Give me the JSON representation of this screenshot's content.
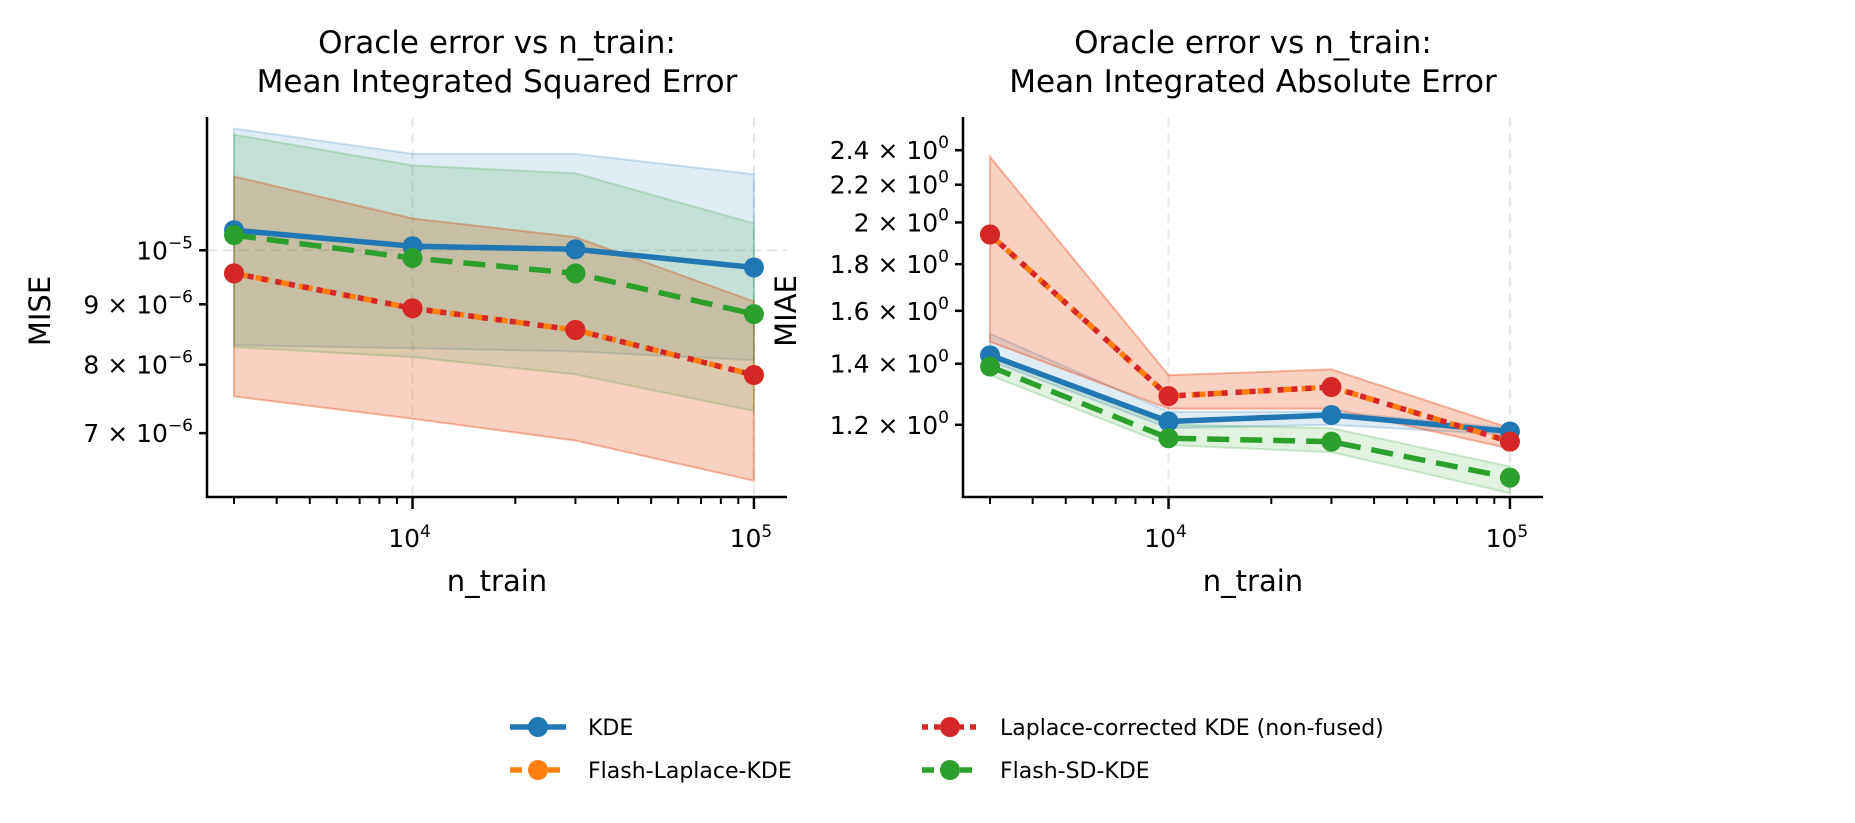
{
  "chart_data": [
    {
      "type": "line",
      "title_lines": [
        "Oracle error vs n_train:",
        "Mean Integrated Squared Error"
      ],
      "xlabel": "n_train",
      "ylabel": "MISE",
      "xscale": "log",
      "yscale": "log",
      "xlim": [
        2500,
        125000
      ],
      "ylim": [
        6.18e-06,
        1.297e-05
      ],
      "x": [
        3000,
        10000,
        30000,
        100000
      ],
      "x_ticks": [
        {
          "value": 10000,
          "base": "10",
          "exp": "4"
        },
        {
          "value": 100000,
          "base": "10",
          "exp": "5"
        }
      ],
      "y_ticks": [
        {
          "value": 1e-05,
          "mant": "",
          "base": "10",
          "exp": "−5"
        },
        {
          "value": 9e-06,
          "mant": "9 × ",
          "base": "10",
          "exp": "−6"
        },
        {
          "value": 8e-06,
          "mant": "8 × ",
          "base": "10",
          "exp": "−6"
        },
        {
          "value": 7e-06,
          "mant": "7 × ",
          "base": "10",
          "exp": "−6"
        }
      ],
      "grid": "dashed, light grey (major ticks only)",
      "series": [
        {
          "name": "KDE",
          "values": [
            1.04e-05,
            1.008e-05,
            1.002e-05,
            9.67e-06
          ],
          "band_upper": [
            1.268e-05,
            1.207e-05,
            1.207e-05,
            1.16e-05
          ],
          "band_lower": [
            8.31e-06,
            8.26e-06,
            8.21e-06,
            8.07e-06
          ]
        },
        {
          "name": "Flash-Laplace-KDE",
          "values": [
            9.56e-06,
            8.93e-06,
            8.56e-06,
            7.84e-06
          ],
          "band_upper": [
            1.155e-05,
            1.064e-05,
            1.026e-05,
            9.05e-06
          ],
          "band_lower": [
            7.52e-06,
            7.2e-06,
            6.9e-06,
            6.38e-06
          ]
        },
        {
          "name": "Laplace-corrected KDE (non-fused)",
          "values": [
            9.56e-06,
            8.93e-06,
            8.56e-06,
            7.84e-06
          ],
          "band_upper": [
            1.155e-05,
            1.064e-05,
            1.026e-05,
            9.05e-06
          ],
          "band_lower": [
            7.52e-06,
            7.2e-06,
            6.9e-06,
            6.38e-06
          ]
        },
        {
          "name": "Flash-SD-KDE",
          "values": [
            1.03e-05,
            9.85e-06,
            9.56e-06,
            8.83e-06
          ],
          "band_upper": [
            1.253e-05,
            1.18e-05,
            1.162e-05,
            1.054e-05
          ],
          "band_lower": [
            8.28e-06,
            8.12e-06,
            7.85e-06,
            7.31e-06
          ]
        }
      ]
    },
    {
      "type": "line",
      "title_lines": [
        "Oracle error vs n_train:",
        "Mean Integrated Absolute Error"
      ],
      "xlabel": "n_train",
      "ylabel": "MIAE",
      "xscale": "log",
      "yscale": "log",
      "xlim": [
        2500,
        125000
      ],
      "ylim": [
        1.0,
        2.61
      ],
      "x": [
        3000,
        10000,
        30000,
        100000
      ],
      "x_ticks": [
        {
          "value": 10000,
          "base": "10",
          "exp": "4"
        },
        {
          "value": 100000,
          "base": "10",
          "exp": "5"
        }
      ],
      "y_ticks": [
        {
          "value": 2.4,
          "mant": "2.4 × ",
          "base": "10",
          "exp": "0"
        },
        {
          "value": 2.2,
          "mant": "2.2 × ",
          "base": "10",
          "exp": "0"
        },
        {
          "value": 2.0,
          "mant": "2 × ",
          "base": "10",
          "exp": "0"
        },
        {
          "value": 1.8,
          "mant": "1.8 × ",
          "base": "10",
          "exp": "0"
        },
        {
          "value": 1.6,
          "mant": "1.6 × ",
          "base": "10",
          "exp": "0"
        },
        {
          "value": 1.4,
          "mant": "1.4 × ",
          "base": "10",
          "exp": "0"
        },
        {
          "value": 1.2,
          "mant": "1.2 × ",
          "base": "10",
          "exp": "0"
        }
      ],
      "grid": "dashed, light grey (major ticks only)",
      "series": [
        {
          "name": "KDE",
          "values": [
            1.43,
            1.21,
            1.23,
            1.18
          ],
          "band_upper": [
            1.51,
            1.24,
            1.24,
            1.19
          ],
          "band_lower": [
            1.41,
            1.19,
            1.2,
            1.17
          ]
        },
        {
          "name": "Flash-Laplace-KDE",
          "values": [
            1.94,
            1.29,
            1.32,
            1.15
          ],
          "band_upper": [
            2.36,
            1.36,
            1.38,
            1.19
          ],
          "band_lower": [
            1.48,
            1.25,
            1.25,
            1.13
          ]
        },
        {
          "name": "Laplace-corrected KDE (non-fused)",
          "values": [
            1.94,
            1.29,
            1.32,
            1.15
          ],
          "band_upper": [
            2.36,
            1.36,
            1.38,
            1.19
          ],
          "band_lower": [
            1.48,
            1.25,
            1.25,
            1.13
          ]
        },
        {
          "name": "Flash-SD-KDE",
          "values": [
            1.39,
            1.16,
            1.15,
            1.05
          ],
          "band_upper": [
            1.44,
            1.2,
            1.19,
            1.08
          ],
          "band_lower": [
            1.36,
            1.14,
            1.12,
            1.01
          ]
        }
      ]
    }
  ],
  "legend": {
    "placement": "bottom-center, 2 columns",
    "items": [
      {
        "label": "KDE",
        "color": "#1f77b4",
        "style": "solid"
      },
      {
        "label": "Flash-Laplace-KDE",
        "color": "#ff7f0e",
        "style": "dashed"
      },
      {
        "label": "Laplace-corrected KDE (non-fused)",
        "color": "#d62728",
        "style": "dotted"
      },
      {
        "label": "Flash-SD-KDE",
        "color": "#2ca02c",
        "style": "dashed"
      }
    ]
  },
  "colors": {
    "KDE": "#1f77b4",
    "Flash-Laplace-KDE": "#ff7f0e",
    "Laplace-corrected KDE (non-fused)": "#d62728",
    "Flash-SD-KDE": "#2ca02c",
    "grid": "#e6e6e6"
  }
}
